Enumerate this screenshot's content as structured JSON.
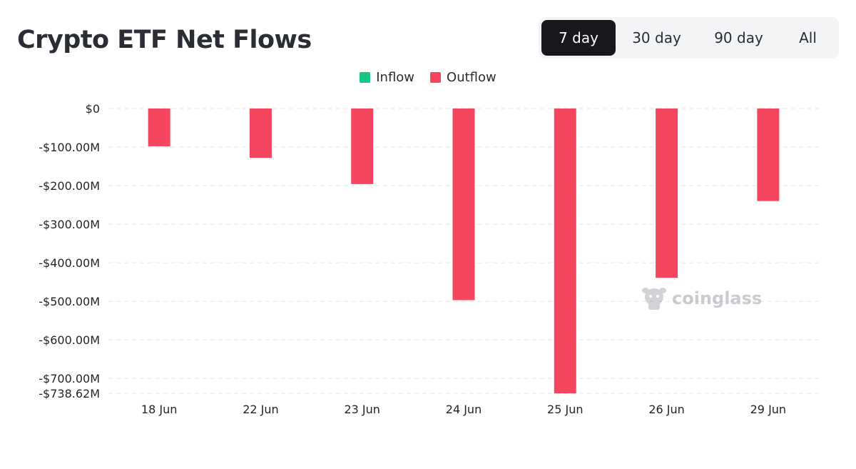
{
  "title": "Crypto ETF Net Flows",
  "range_tabs": [
    {
      "label": "7 day",
      "active": true
    },
    {
      "label": "30 day",
      "active": false
    },
    {
      "label": "90 day",
      "active": false
    },
    {
      "label": "All",
      "active": false
    }
  ],
  "watermark": "coinglass",
  "chart_data": {
    "type": "bar",
    "legend": [
      {
        "label": "Inflow",
        "color": "#16c784"
      },
      {
        "label": "Outflow",
        "color": "#f6465d"
      }
    ],
    "legend_placement": "top-center",
    "grid": true,
    "categories": [
      "18 Jun",
      "22 Jun",
      "23 Jun",
      "24 Jun",
      "25 Jun",
      "26 Jun",
      "29 Jun"
    ],
    "series": [
      {
        "name": "Outflow",
        "values": [
          -98,
          -128,
          -196,
          -497,
          -738.62,
          -439,
          -240
        ]
      }
    ],
    "unit": "M USD",
    "ylim": [
      -738.62,
      0
    ],
    "y_ticks": [
      {
        "value": 0,
        "label": "$0"
      },
      {
        "value": -100,
        "label": "-$100.00M"
      },
      {
        "value": -200,
        "label": "-$200.00M"
      },
      {
        "value": -300,
        "label": "-$300.00M"
      },
      {
        "value": -400,
        "label": "-$400.00M"
      },
      {
        "value": -500,
        "label": "-$500.00M"
      },
      {
        "value": -600,
        "label": "-$600.00M"
      },
      {
        "value": -700,
        "label": "-$700.00M"
      },
      {
        "value": -738.62,
        "label": "-$738.62M"
      }
    ]
  }
}
